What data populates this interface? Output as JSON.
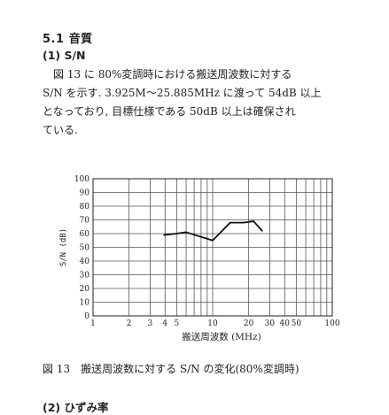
{
  "section": {
    "number": "5.1",
    "title": "音質"
  },
  "subsection": {
    "number": "(1)",
    "title": "S/N"
  },
  "paragraph": {
    "lines": [
      "図 13 に 80%変調時における搬送周波数に対する",
      "S/N を示す. 3.925M～25.885MHz に渡って 54dB 以上",
      "となっており, 目標仕様である 50dB 以上は確保され",
      "ている."
    ]
  },
  "figure": {
    "caption": "図 13　搬送周波数に対する S/N の変化(80%変調時)"
  },
  "next_subsection": {
    "number": "(2)",
    "title": "ひずみ率"
  },
  "chart_data": {
    "type": "line",
    "title": "",
    "xlabel": "搬送周波数 (MHz)",
    "ylabel": "S/N (dB)",
    "x_scale": "log",
    "xlim": [
      1,
      100
    ],
    "ylim": [
      0,
      100
    ],
    "grid": true,
    "x_ticks": [
      "1",
      "2",
      "3",
      "4",
      "5",
      "10",
      "20",
      "30",
      "40",
      "50",
      "100"
    ],
    "y_ticks": [
      "0",
      "10",
      "20",
      "30",
      "40",
      "50",
      "60",
      "70",
      "80",
      "90",
      "100"
    ],
    "series": [
      {
        "x": [
          3.925,
          5.0,
          6.0,
          10.0,
          14.0,
          18.0,
          22.0,
          25.885
        ],
        "y": [
          59,
          60,
          61,
          55,
          68,
          68,
          69,
          62
        ]
      }
    ],
    "line_color": "#111111",
    "grid_color": "#555555"
  }
}
